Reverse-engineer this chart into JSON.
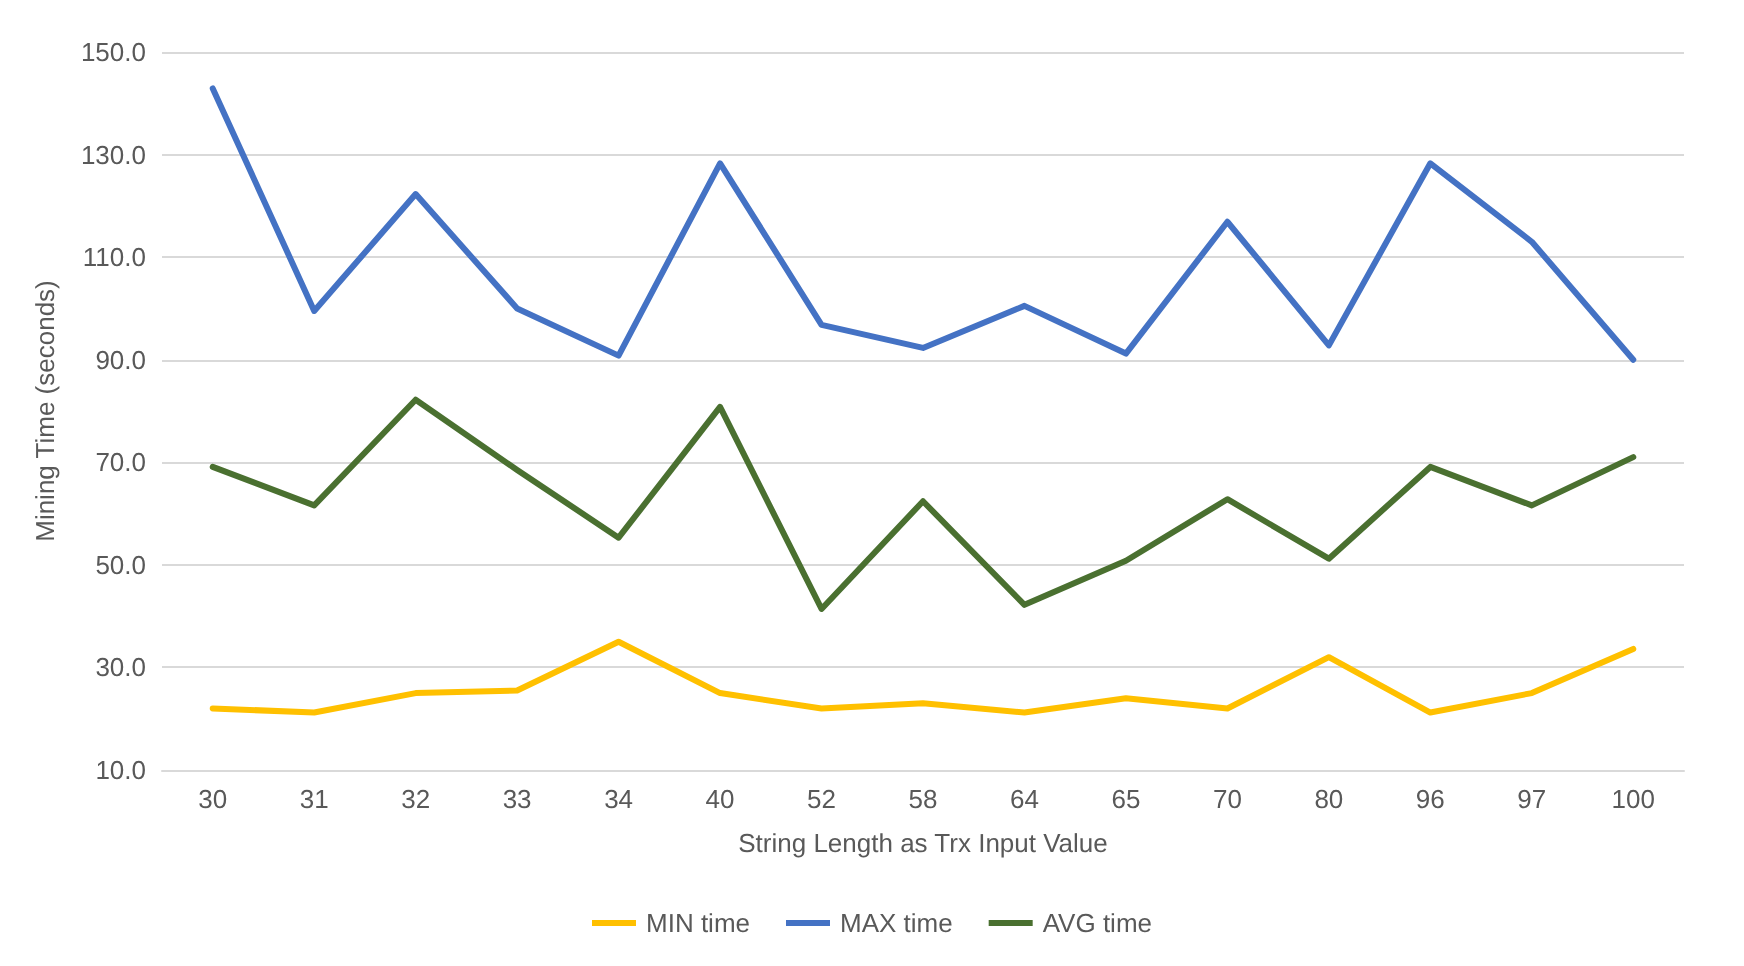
{
  "chart_data": {
    "type": "line",
    "xlabel": "String Length as Trx Input Value",
    "ylabel": "Mining Time (seconds)",
    "categories": [
      "30",
      "31",
      "32",
      "33",
      "34",
      "40",
      "52",
      "58",
      "64",
      "65",
      "70",
      "80",
      "96",
      "97",
      "100"
    ],
    "series": [
      {
        "name": "MIN time",
        "color": "#ffc000",
        "values": [
          22,
          21.2,
          25,
          25.5,
          35,
          25,
          22,
          23,
          21.2,
          24,
          22,
          32,
          21.2,
          25,
          33.6
        ]
      },
      {
        "name": "MAX time",
        "color": "#4472c4",
        "values": [
          142.9,
          99.5,
          122.3,
          100,
          90.8,
          128.3,
          96.8,
          92.3,
          100.5,
          91.2,
          116.9,
          92.8,
          128.3,
          113,
          90
        ]
      },
      {
        "name": "AVG time",
        "color": "#4a7030",
        "values": [
          69.1,
          61.6,
          82.2,
          68.5,
          55.3,
          80.8,
          41.4,
          62.4,
          42.2,
          50.8,
          62.8,
          51.2,
          69.1,
          61.6,
          71
        ]
      }
    ],
    "ylim": [
      10,
      150
    ],
    "yticks": [
      {
        "value": 10,
        "label": "10.0"
      },
      {
        "value": 30,
        "label": "30.0"
      },
      {
        "value": 50,
        "label": "50.0"
      },
      {
        "value": 70,
        "label": "70.0"
      },
      {
        "value": 90,
        "label": "90.0"
      },
      {
        "value": 110,
        "label": "110.0"
      },
      {
        "value": 130,
        "label": "130.0"
      },
      {
        "value": 150,
        "label": "150.0"
      }
    ],
    "grid": "y",
    "legend": "bottom",
    "marker": "none",
    "line_style": "solid"
  }
}
